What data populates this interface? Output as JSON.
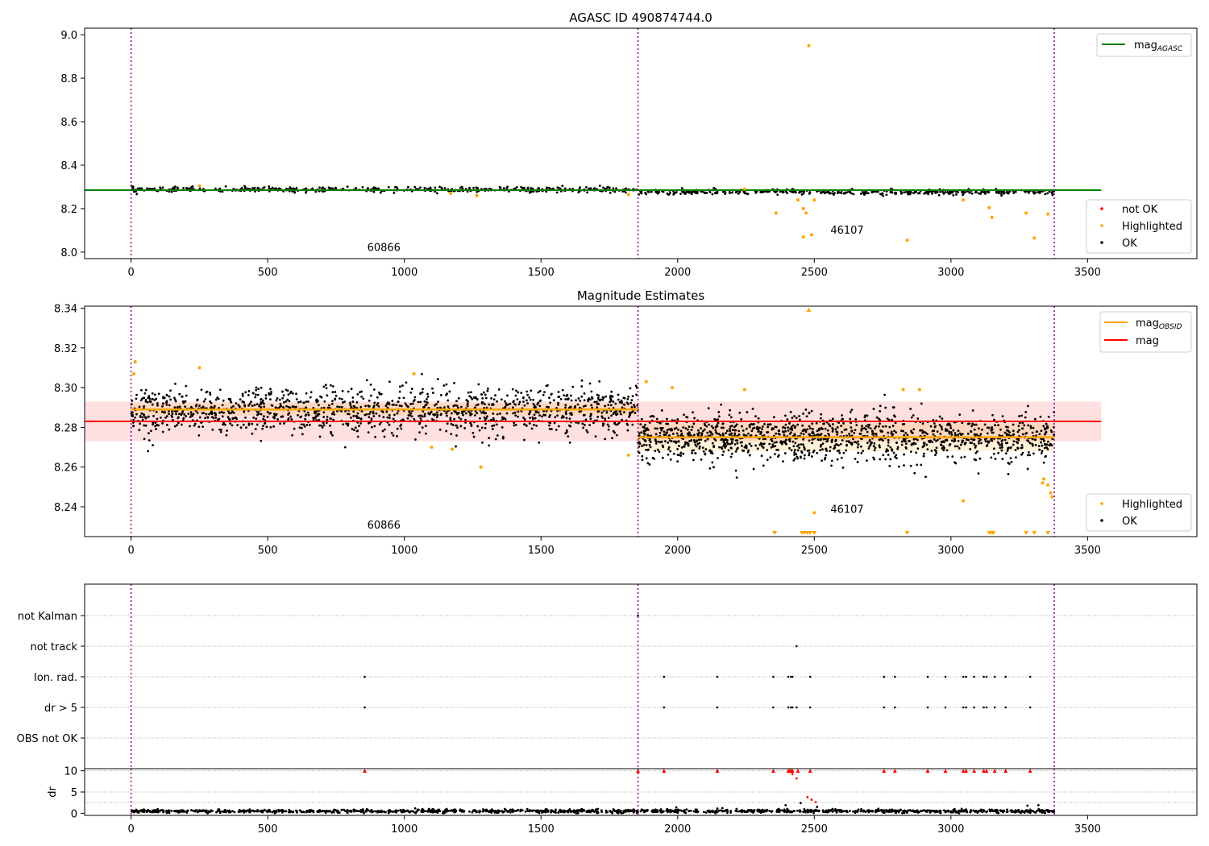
{
  "figure": {
    "title": "AGASC ID 490874744.0"
  },
  "chart_data": [
    {
      "type": "scatter",
      "id": "top",
      "title": "AGASC ID 490874744.0",
      "xlim": [
        -170,
        3900
      ],
      "ylim": [
        7.97,
        9.03
      ],
      "x_ticks": [
        0,
        500,
        1000,
        1500,
        2000,
        2500,
        3000,
        3500
      ],
      "y_ticks": [
        8.0,
        8.2,
        8.4,
        8.6,
        8.8,
        9.0
      ],
      "y_tick_decimals": 1,
      "vlines": [
        0,
        1855,
        3378
      ],
      "obsid_labels": [
        {
          "text": "60866",
          "x": 925,
          "y": 8.005
        },
        {
          "text": "46107",
          "x": 2620,
          "y": 8.085
        }
      ],
      "mag_agasc": {
        "value": 8.285,
        "x_range": [
          -170,
          3550
        ],
        "color": "#008000"
      },
      "segments": [
        {
          "x_range": [
            0,
            1855
          ],
          "mean": 8.288,
          "scatter": 0.006,
          "n": 420
        },
        {
          "x_range": [
            1855,
            3378
          ],
          "mean": 8.276,
          "scatter": 0.006,
          "n": 400
        }
      ],
      "highlighted": [
        {
          "x": 2480,
          "y": 8.95
        },
        {
          "x": 2360,
          "y": 8.18
        },
        {
          "x": 2440,
          "y": 8.24
        },
        {
          "x": 2460,
          "y": 8.2
        },
        {
          "x": 2470,
          "y": 8.18
        },
        {
          "x": 2460,
          "y": 8.07
        },
        {
          "x": 2490,
          "y": 8.08
        },
        {
          "x": 2500,
          "y": 8.24
        },
        {
          "x": 2840,
          "y": 8.055
        },
        {
          "x": 3045,
          "y": 8.24
        },
        {
          "x": 3140,
          "y": 8.205
        },
        {
          "x": 3150,
          "y": 8.16
        },
        {
          "x": 3275,
          "y": 8.18
        },
        {
          "x": 3305,
          "y": 8.065
        },
        {
          "x": 3355,
          "y": 8.175
        },
        {
          "x": 1265,
          "y": 8.26
        },
        {
          "x": 1170,
          "y": 8.27
        },
        {
          "x": 1820,
          "y": 8.265
        },
        {
          "x": 250,
          "y": 8.305
        },
        {
          "x": 2245,
          "y": 8.29
        }
      ],
      "legend_lines": [
        {
          "label": "mag",
          "sub": "AGASC",
          "color": "#008000"
        }
      ],
      "legend_points": [
        {
          "label": "not OK",
          "color": "#ff0000"
        },
        {
          "label": "Highlighted",
          "color": "#ffa500"
        },
        {
          "label": "OK",
          "color": "#000000"
        }
      ]
    },
    {
      "type": "scatter",
      "id": "mid",
      "title": "Magnitude Estimates",
      "xlim": [
        -170,
        3900
      ],
      "ylim": [
        8.225,
        8.341
      ],
      "x_ticks": [
        0,
        500,
        1000,
        1500,
        2000,
        2500,
        3000,
        3500
      ],
      "y_ticks": [
        8.24,
        8.26,
        8.28,
        8.3,
        8.32,
        8.34
      ],
      "y_tick_decimals": 2,
      "vlines": [
        0,
        1855,
        3378
      ],
      "obsid_labels": [
        {
          "text": "60866",
          "x": 925,
          "y": 8.229
        },
        {
          "text": "46107",
          "x": 2620,
          "y": 8.237
        }
      ],
      "mag": {
        "value": 8.283,
        "band": [
          8.273,
          8.293
        ],
        "x_range": [
          -170,
          3550
        ],
        "color": "#ff0000"
      },
      "mag_obsid": [
        {
          "x_range": [
            0,
            1855
          ],
          "value": 8.289,
          "band": [
            8.286,
            8.292
          ],
          "color": "#ffa500"
        },
        {
          "x_range": [
            1855,
            3378
          ],
          "value": 8.275,
          "band": [
            8.268,
            8.282
          ],
          "color": "#ffa500"
        }
      ],
      "segments": [
        {
          "x_range": [
            0,
            1855
          ],
          "mean": 8.288,
          "scatter": 0.006,
          "n": 1300
        },
        {
          "x_range": [
            1855,
            3378
          ],
          "mean": 8.275,
          "scatter": 0.006,
          "n": 1300
        }
      ],
      "highlighted": [
        {
          "x": 10,
          "y": 8.307
        },
        {
          "x": 15,
          "y": 8.313
        },
        {
          "x": 250,
          "y": 8.31
        },
        {
          "x": 1035,
          "y": 8.307
        },
        {
          "x": 1100,
          "y": 8.27
        },
        {
          "x": 1175,
          "y": 8.269
        },
        {
          "x": 1280,
          "y": 8.26
        },
        {
          "x": 1820,
          "y": 8.266
        },
        {
          "x": 1885,
          "y": 8.303
        },
        {
          "x": 1980,
          "y": 8.3
        },
        {
          "x": 2245,
          "y": 8.299
        },
        {
          "x": 2500,
          "y": 8.237
        },
        {
          "x": 2825,
          "y": 8.299
        },
        {
          "x": 2885,
          "y": 8.299
        },
        {
          "x": 3045,
          "y": 8.243
        },
        {
          "x": 3340,
          "y": 8.254
        },
        {
          "x": 3355,
          "y": 8.251
        },
        {
          "x": 3365,
          "y": 8.247
        },
        {
          "x": 3370,
          "y": 8.245
        },
        {
          "x": 3335,
          "y": 8.252
        }
      ],
      "off_high": [
        2480
      ],
      "off_low": [
        2355,
        2455,
        2465,
        2475,
        2485,
        2500,
        2840,
        3140,
        3150,
        3155,
        3275,
        3305,
        3355
      ],
      "legend_lines": [
        {
          "label": "mag",
          "sub": "OBSID",
          "color": "#ffa500"
        },
        {
          "label": "mag",
          "sub": "",
          "color": "#ff0000"
        }
      ],
      "legend_points": [
        {
          "label": "Highlighted",
          "color": "#ffa500"
        },
        {
          "label": "OK",
          "color": "#000000"
        }
      ]
    },
    {
      "type": "scatter",
      "id": "flags",
      "xlim": [
        -170,
        3900
      ],
      "categories": [
        "not Kalman",
        "not track",
        "Ion. rad.",
        "dr > 5",
        "OBS not OK"
      ],
      "vlines": [
        0,
        1855,
        3378
      ],
      "flag_points": {
        "not Kalman": [
          1855
        ],
        "not track": [
          2435
        ],
        "Ion. rad.": [
          855,
          1950,
          2145,
          2350,
          2405,
          2415,
          2420,
          2485,
          2755,
          2795,
          2915,
          2980,
          3045,
          3055,
          3085,
          3120,
          3130,
          3160,
          3200,
          3290
        ],
        "dr > 5": [
          855,
          1950,
          2145,
          2350,
          2405,
          2415,
          2420,
          2435,
          2485,
          2755,
          2795,
          2915,
          2980,
          3045,
          3055,
          3085,
          3120,
          3130,
          3160,
          3200,
          3290
        ],
        "OBS not OK": []
      }
    },
    {
      "type": "scatter",
      "id": "dr",
      "ylabel": "dr",
      "xlim": [
        -170,
        3900
      ],
      "ylim": [
        -0.5,
        10.5
      ],
      "x_ticks": [
        0,
        500,
        1000,
        1500,
        2000,
        2500,
        3000,
        3500
      ],
      "y_ticks": [
        0,
        5,
        10
      ],
      "vlines": [
        0,
        1855,
        3378
      ],
      "segments": [
        {
          "x_range": [
            0,
            3378
          ],
          "mean": 0.5,
          "scatter": 0.2,
          "n": 1300
        }
      ],
      "red_points": [
        {
          "x": 2420,
          "y": 9.2
        },
        {
          "x": 2435,
          "y": 8.2
        },
        {
          "x": 2475,
          "y": 3.8
        },
        {
          "x": 2490,
          "y": 3.2
        },
        {
          "x": 2505,
          "y": 2.6
        }
      ],
      "capped": [
        855,
        1855,
        1950,
        2145,
        2350,
        2405,
        2410,
        2415,
        2420,
        2440,
        2485,
        2755,
        2795,
        2915,
        2980,
        3045,
        3055,
        3085,
        3120,
        3130,
        3160,
        3200,
        3290
      ],
      "bumps": [
        {
          "x": 2450,
          "y": 2.4
        },
        {
          "x": 2395,
          "y": 1.9
        },
        {
          "x": 3280,
          "y": 1.8
        },
        {
          "x": 3320,
          "y": 1.9
        },
        {
          "x": 1995,
          "y": 1.4
        },
        {
          "x": 2510,
          "y": 1.5
        }
      ]
    }
  ]
}
